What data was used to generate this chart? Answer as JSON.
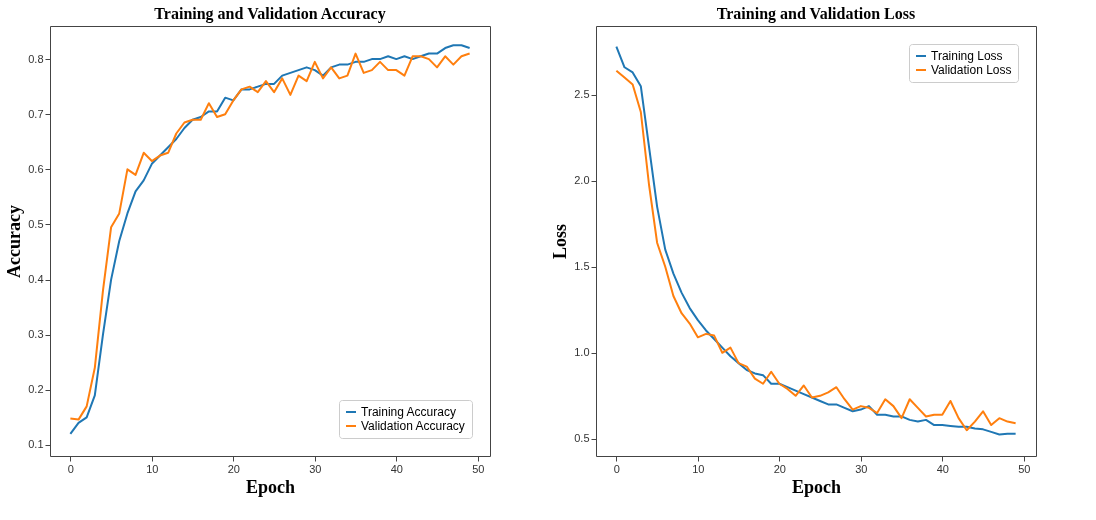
{
  "chart_data": [
    {
      "type": "line",
      "title": "Training and Validation Accuracy",
      "xlabel": "Epoch",
      "ylabel": "Accuracy",
      "x": [
        0,
        1,
        2,
        3,
        4,
        5,
        6,
        7,
        8,
        9,
        10,
        11,
        12,
        13,
        14,
        15,
        16,
        17,
        18,
        19,
        20,
        21,
        22,
        23,
        24,
        25,
        26,
        27,
        28,
        29,
        30,
        31,
        32,
        33,
        34,
        35,
        36,
        37,
        38,
        39,
        40,
        41,
        42,
        43,
        44,
        45,
        46,
        47,
        48,
        49
      ],
      "series": [
        {
          "name": "Training Accuracy",
          "color": "#1f77b4",
          "values": [
            0.12,
            0.14,
            0.15,
            0.19,
            0.3,
            0.4,
            0.47,
            0.52,
            0.56,
            0.58,
            0.61,
            0.625,
            0.64,
            0.655,
            0.675,
            0.69,
            0.695,
            0.705,
            0.705,
            0.73,
            0.725,
            0.745,
            0.745,
            0.75,
            0.755,
            0.755,
            0.77,
            0.775,
            0.78,
            0.785,
            0.78,
            0.77,
            0.785,
            0.79,
            0.79,
            0.795,
            0.795,
            0.8,
            0.8,
            0.805,
            0.8,
            0.805,
            0.8,
            0.805,
            0.81,
            0.81,
            0.82,
            0.825,
            0.825,
            0.82
          ]
        },
        {
          "name": "Validation Accuracy",
          "color": "#ff7f0e",
          "values": [
            0.148,
            0.146,
            0.17,
            0.24,
            0.38,
            0.495,
            0.52,
            0.6,
            0.59,
            0.63,
            0.615,
            0.625,
            0.63,
            0.665,
            0.685,
            0.69,
            0.69,
            0.72,
            0.695,
            0.7,
            0.725,
            0.745,
            0.75,
            0.74,
            0.76,
            0.74,
            0.765,
            0.735,
            0.77,
            0.76,
            0.795,
            0.765,
            0.785,
            0.765,
            0.77,
            0.81,
            0.775,
            0.78,
            0.795,
            0.78,
            0.78,
            0.77,
            0.805,
            0.805,
            0.8,
            0.785,
            0.805,
            0.79,
            0.805,
            0.81
          ]
        }
      ],
      "xlim": [
        -2.5,
        51.5
      ],
      "xticks": [
        0,
        10,
        20,
        30,
        40,
        50
      ],
      "ylim": [
        0.08,
        0.86
      ],
      "yticks": [
        0.1,
        0.2,
        0.3,
        0.4,
        0.5,
        0.6,
        0.7,
        0.8
      ],
      "grid": false,
      "legend": "bottom right"
    },
    {
      "type": "line",
      "title": "Training and Validation Loss",
      "xlabel": "Epoch",
      "ylabel": "Loss",
      "x": [
        0,
        1,
        2,
        3,
        4,
        5,
        6,
        7,
        8,
        9,
        10,
        11,
        12,
        13,
        14,
        15,
        16,
        17,
        18,
        19,
        20,
        21,
        22,
        23,
        24,
        25,
        26,
        27,
        28,
        29,
        30,
        31,
        32,
        33,
        34,
        35,
        36,
        37,
        38,
        39,
        40,
        41,
        42,
        43,
        44,
        45,
        46,
        47,
        48,
        49
      ],
      "series": [
        {
          "name": "Training Loss",
          "color": "#1f77b4",
          "values": [
            2.78,
            2.66,
            2.63,
            2.55,
            2.2,
            1.85,
            1.6,
            1.46,
            1.35,
            1.26,
            1.19,
            1.13,
            1.08,
            1.03,
            0.98,
            0.94,
            0.9,
            0.88,
            0.87,
            0.82,
            0.82,
            0.8,
            0.78,
            0.76,
            0.74,
            0.72,
            0.7,
            0.7,
            0.68,
            0.66,
            0.67,
            0.69,
            0.64,
            0.64,
            0.63,
            0.63,
            0.61,
            0.6,
            0.61,
            0.58,
            0.58,
            0.575,
            0.57,
            0.57,
            0.56,
            0.555,
            0.54,
            0.525,
            0.53,
            0.53
          ]
        },
        {
          "name": "Validation Loss",
          "color": "#ff7f0e",
          "values": [
            2.64,
            2.6,
            2.56,
            2.4,
            1.98,
            1.64,
            1.5,
            1.33,
            1.23,
            1.17,
            1.09,
            1.11,
            1.1,
            1.0,
            1.03,
            0.94,
            0.92,
            0.85,
            0.82,
            0.89,
            0.82,
            0.79,
            0.75,
            0.81,
            0.74,
            0.75,
            0.77,
            0.8,
            0.73,
            0.67,
            0.69,
            0.68,
            0.65,
            0.73,
            0.69,
            0.62,
            0.73,
            0.68,
            0.63,
            0.64,
            0.64,
            0.72,
            0.62,
            0.55,
            0.6,
            0.66,
            0.58,
            0.62,
            0.6,
            0.59
          ]
        }
      ],
      "xlim": [
        -2.5,
        51.5
      ],
      "xticks": [
        0,
        10,
        20,
        30,
        40,
        50
      ],
      "ylim": [
        0.4,
        2.9
      ],
      "yticks": [
        0.5,
        {
          "value": 1,
          "label": "1.0"
        },
        1.5,
        {
          "value": 2,
          "label": "2.0"
        },
        2.5
      ],
      "grid": false,
      "legend": "top right"
    }
  ]
}
